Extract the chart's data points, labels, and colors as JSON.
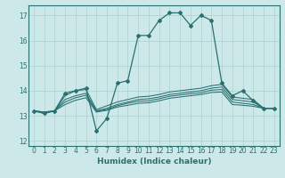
{
  "xlabel": "Humidex (Indice chaleur)",
  "ylabel": "",
  "xlim": [
    -0.5,
    23.5
  ],
  "ylim": [
    11.8,
    17.4
  ],
  "yticks": [
    12,
    13,
    14,
    15,
    16,
    17
  ],
  "xticks": [
    0,
    1,
    2,
    3,
    4,
    5,
    6,
    7,
    8,
    9,
    10,
    11,
    12,
    13,
    14,
    15,
    16,
    17,
    18,
    19,
    20,
    21,
    22,
    23
  ],
  "background_color": "#cce8e8",
  "grid_color": "#aad0d0",
  "line_color": "#2a7070",
  "lines": [
    {
      "x": [
        0,
        1,
        2,
        3,
        4,
        5,
        6,
        7,
        8,
        9,
        10,
        11,
        12,
        13,
        14,
        15,
        16,
        17,
        18,
        19,
        20,
        21,
        22,
        23
      ],
      "y": [
        13.2,
        13.1,
        13.2,
        13.9,
        14.0,
        14.1,
        12.4,
        12.9,
        14.3,
        14.4,
        16.2,
        16.2,
        16.8,
        17.1,
        17.1,
        16.6,
        17.0,
        16.8,
        14.3,
        13.8,
        14.0,
        13.6,
        13.3,
        13.3
      ],
      "marker": true
    },
    {
      "x": [
        0,
        1,
        2,
        3,
        4,
        5,
        6,
        7,
        8,
        9,
        10,
        11,
        12,
        13,
        14,
        15,
        16,
        17,
        18,
        19,
        20,
        21,
        22,
        23
      ],
      "y": [
        13.2,
        13.15,
        13.2,
        13.8,
        14.0,
        14.05,
        13.25,
        13.4,
        13.55,
        13.65,
        13.75,
        13.78,
        13.85,
        13.95,
        14.0,
        14.05,
        14.1,
        14.2,
        14.25,
        13.75,
        13.7,
        13.65,
        13.3,
        13.3
      ],
      "marker": false
    },
    {
      "x": [
        0,
        1,
        2,
        3,
        4,
        5,
        6,
        7,
        8,
        9,
        10,
        11,
        12,
        13,
        14,
        15,
        16,
        17,
        18,
        19,
        20,
        21,
        22,
        23
      ],
      "y": [
        13.2,
        13.15,
        13.2,
        13.65,
        13.8,
        13.9,
        13.2,
        13.3,
        13.45,
        13.55,
        13.65,
        13.68,
        13.75,
        13.85,
        13.9,
        13.95,
        14.0,
        14.1,
        14.15,
        13.65,
        13.6,
        13.55,
        13.3,
        13.3
      ],
      "marker": false
    },
    {
      "x": [
        0,
        1,
        2,
        3,
        4,
        5,
        6,
        7,
        8,
        9,
        10,
        11,
        12,
        13,
        14,
        15,
        16,
        17,
        18,
        19,
        20,
        21,
        22,
        23
      ],
      "y": [
        13.2,
        13.1,
        13.2,
        13.55,
        13.72,
        13.82,
        13.18,
        13.25,
        13.4,
        13.5,
        13.58,
        13.6,
        13.68,
        13.78,
        13.83,
        13.88,
        13.92,
        14.02,
        14.05,
        13.55,
        13.5,
        13.45,
        13.3,
        13.3
      ],
      "marker": false
    },
    {
      "x": [
        0,
        1,
        2,
        3,
        4,
        5,
        6,
        7,
        8,
        9,
        10,
        11,
        12,
        13,
        14,
        15,
        16,
        17,
        18,
        19,
        20,
        21,
        22,
        23
      ],
      "y": [
        13.2,
        13.1,
        13.2,
        13.45,
        13.62,
        13.72,
        13.15,
        13.22,
        13.35,
        13.42,
        13.5,
        13.52,
        13.6,
        13.7,
        13.75,
        13.8,
        13.85,
        13.93,
        13.95,
        13.45,
        13.42,
        13.38,
        13.3,
        13.3
      ],
      "marker": false
    }
  ]
}
